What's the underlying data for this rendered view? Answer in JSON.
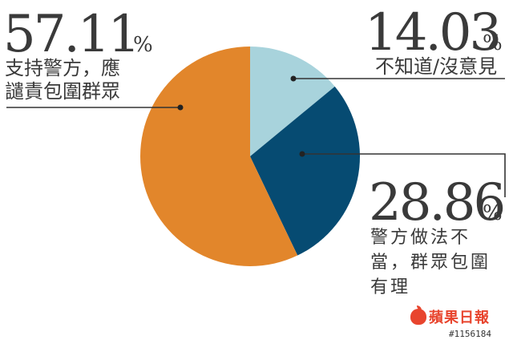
{
  "chart_data": {
    "type": "pie",
    "slices": [
      {
        "label_lines": [
          "不知道/沒意見"
        ],
        "value": "14.03",
        "pct_sign": "%",
        "color": "#a8d3dc"
      },
      {
        "label_lines": [
          "警方做法不",
          "當，群眾包圍",
          "有理"
        ],
        "value": "28.86",
        "pct_sign": "%",
        "color": "#064b72"
      },
      {
        "label_lines": [
          "支持警方，應",
          "譴責包圍群眾"
        ],
        "value": "57.11",
        "pct_sign": "%",
        "color": "#e2862b"
      }
    ],
    "start_angle": "12 o'clock",
    "direction": "clockwise"
  },
  "source": {
    "brand": "蘋果日報",
    "code": "#1156184"
  }
}
